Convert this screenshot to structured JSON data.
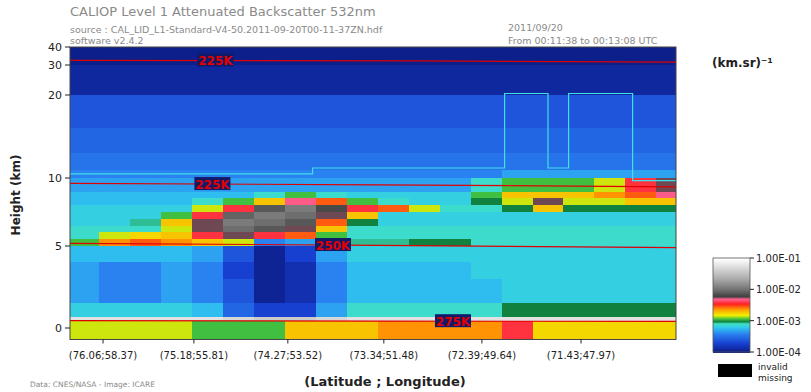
{
  "chart_data": {
    "type": "heatmap",
    "title": "CALIOP Level 1 Attenuated Backscatter 532nm",
    "subtitle": "source : CAL_LID_L1-Standard-V4-50.2011-09-20T00-11-37ZN.hdf",
    "annotations": [
      "software v2.4.2",
      "2011/09/20",
      "From 00:11:38 to 00:13:08 UTC",
      "Data: CNES/NASA - Image: ICARE"
    ],
    "x_label": "(Latitude ; Longitude)",
    "y_label": "Height (km)",
    "xlim": [
      76.38,
      70.51
    ],
    "xticks": [
      {
        "value": 76.06,
        "label": "(76.06;58.37)"
      },
      {
        "value": 75.18,
        "label": "(75.18;55.81)"
      },
      {
        "value": 74.27,
        "label": "(74.27;53.52)"
      },
      {
        "value": 73.34,
        "label": "(73.34;51.48)"
      },
      {
        "value": 72.39,
        "label": "(72.39;49.64)"
      },
      {
        "value": 71.43,
        "label": "(71.43;47.97)"
      }
    ],
    "ylim": [
      -0.7,
      40
    ],
    "yticks": [
      0,
      5,
      10,
      20,
      30,
      40
    ],
    "x_bins": [
      76.38,
      76.1,
      75.8,
      75.5,
      75.2,
      74.9,
      74.6,
      74.3,
      74.0,
      73.7,
      73.4,
      73.1,
      72.8,
      72.5,
      72.2,
      71.9,
      71.6,
      71.3,
      71.0,
      70.7,
      70.51
    ],
    "y_bins": [
      -0.7,
      0.4,
      0.7,
      1.5,
      3,
      4,
      5,
      5.5,
      6,
      6.5,
      7,
      7.5,
      8,
      8.5,
      9,
      10,
      11,
      13,
      16,
      20,
      30,
      40
    ],
    "values": [
      [
        0.0015,
        0.0015,
        0.0015,
        0.0015,
        0.0012,
        0.0012,
        0.0012,
        0.002,
        0.002,
        0.002,
        0.0025,
        0.0025,
        0.0025,
        0.0025,
        0.004,
        0.0018,
        0.0018,
        0.0018,
        0.0018,
        0.0018
      ],
      [
        0.06,
        0.06,
        0.06,
        0.06,
        0.06,
        0.05,
        0.04,
        0.04,
        0.05,
        0.06,
        0.06,
        0.06,
        0.06,
        0.06,
        0.06,
        0.06,
        0.06,
        0.06,
        0.06,
        0.06
      ],
      [
        0.0007,
        0.0007,
        0.0007,
        0.0007,
        0.0006,
        0.0003,
        0.0002,
        0.0002,
        0.0005,
        0.0008,
        0.0008,
        0.0008,
        0.0008,
        0.0008,
        0.001,
        0.001,
        0.001,
        0.001,
        0.001,
        0.001
      ],
      [
        0.0005,
        0.0004,
        0.0004,
        0.0005,
        0.0004,
        0.00025,
        0.00012,
        0.00015,
        0.0004,
        0.0006,
        0.0006,
        0.0006,
        0.0006,
        0.0006,
        0.0007,
        0.0007,
        0.0007,
        0.0007,
        0.0007,
        0.0007
      ],
      [
        0.0005,
        0.0004,
        0.0004,
        0.0005,
        0.0004,
        0.0002,
        0.00012,
        0.00015,
        0.0004,
        0.0006,
        0.0006,
        0.0006,
        0.0006,
        0.0007,
        0.0007,
        0.0007,
        0.0007,
        0.0007,
        0.0007,
        0.0007
      ],
      [
        0.0006,
        0.0006,
        0.0006,
        0.0006,
        0.0005,
        0.00025,
        0.00012,
        0.0002,
        0.0005,
        0.0007,
        0.0007,
        0.0007,
        0.0007,
        0.0007,
        0.0007,
        0.0007,
        0.0007,
        0.0007,
        0.0007,
        0.0007
      ],
      [
        0.0012,
        0.0025,
        0.003,
        0.0025,
        0.002,
        0.0015,
        0.0004,
        0.0005,
        0.0008,
        0.0009,
        0.0009,
        0.001,
        0.001,
        0.0008,
        0.0008,
        0.0008,
        0.0008,
        0.0008,
        0.0008,
        0.0008
      ],
      [
        0.0008,
        0.0015,
        0.0018,
        0.002,
        0.004,
        0.006,
        0.004,
        0.003,
        0.0012,
        0.0008,
        0.0008,
        0.0008,
        0.0008,
        0.0008,
        0.0008,
        0.0008,
        0.0008,
        0.0008,
        0.0008,
        0.0008
      ],
      [
        0.0008,
        0.0008,
        0.0008,
        0.0015,
        0.006,
        0.01,
        0.008,
        0.006,
        0.002,
        0.0008,
        0.0008,
        0.0008,
        0.0008,
        0.0008,
        0.0008,
        0.0008,
        0.0008,
        0.0008,
        0.0008,
        0.0008
      ],
      [
        0.0007,
        0.0007,
        0.0009,
        0.002,
        0.006,
        0.012,
        0.01,
        0.008,
        0.003,
        0.001,
        0.0007,
        0.0007,
        0.0007,
        0.0007,
        0.0007,
        0.0007,
        0.0007,
        0.0007,
        0.0007,
        0.0007
      ],
      [
        0.0007,
        0.0007,
        0.0007,
        0.0012,
        0.004,
        0.009,
        0.012,
        0.01,
        0.006,
        0.002,
        0.0007,
        0.0007,
        0.0007,
        0.0007,
        0.0007,
        0.0007,
        0.0007,
        0.0007,
        0.0007,
        0.0007
      ],
      [
        0.0007,
        0.0007,
        0.0007,
        0.0007,
        0.0015,
        0.004,
        0.008,
        0.012,
        0.007,
        0.004,
        0.003,
        0.0015,
        0.0008,
        0.0008,
        0.001,
        0.002,
        0.001,
        0.001,
        0.001,
        0.001
      ],
      [
        0.0006,
        0.0006,
        0.0006,
        0.0006,
        0.0008,
        0.0012,
        0.002,
        0.005,
        0.003,
        0.0012,
        0.0008,
        0.0007,
        0.0007,
        0.001,
        0.0015,
        0.006,
        0.0015,
        0.0015,
        0.002,
        0.002
      ],
      [
        0.0006,
        0.0006,
        0.0006,
        0.0006,
        0.0006,
        0.0006,
        0.0008,
        0.0012,
        0.0008,
        0.0007,
        0.0007,
        0.0007,
        0.0007,
        0.0012,
        0.002,
        0.002,
        0.002,
        0.0025,
        0.003,
        0.005
      ],
      [
        0.0005,
        0.0005,
        0.0005,
        0.0005,
        0.0005,
        0.0005,
        0.0005,
        0.0005,
        0.0005,
        0.0005,
        0.0005,
        0.0005,
        0.0005,
        0.0008,
        0.0012,
        0.0012,
        0.0012,
        0.0015,
        0.004,
        0.006
      ],
      [
        0.0004,
        0.0004,
        0.0004,
        0.0004,
        0.0004,
        0.0004,
        0.0004,
        0.0004,
        0.0004,
        0.0004,
        0.0004,
        0.0004,
        0.0004,
        0.0004,
        0.0005,
        0.0005,
        0.0005,
        0.0005,
        0.0005,
        0.0005
      ],
      [
        0.00035,
        0.00035,
        0.00035,
        0.00035,
        0.00035,
        0.00035,
        0.00035,
        0.00035,
        0.00035,
        0.00035,
        0.00035,
        0.00035,
        0.00035,
        0.00035,
        0.00035,
        0.00035,
        0.00035,
        0.00035,
        0.00035,
        0.00035
      ],
      [
        0.0003,
        0.0003,
        0.0003,
        0.0003,
        0.0003,
        0.0003,
        0.0003,
        0.0003,
        0.0003,
        0.0003,
        0.0003,
        0.0003,
        0.0003,
        0.0003,
        0.0003,
        0.0003,
        0.0003,
        0.0003,
        0.0003,
        0.0003
      ],
      [
        0.00025,
        0.00025,
        0.00025,
        0.00025,
        0.00025,
        0.00025,
        0.00025,
        0.00025,
        0.00025,
        0.00025,
        0.00025,
        0.00025,
        0.00025,
        0.00025,
        0.00025,
        0.00025,
        0.00025,
        0.00025,
        0.00025,
        0.00025
      ],
      [
        0.00013,
        0.00013,
        0.00013,
        0.00013,
        0.00013,
        0.00013,
        0.00013,
        0.00013,
        0.00013,
        0.00013,
        0.00013,
        0.00013,
        0.00013,
        0.00013,
        0.00013,
        0.00013,
        0.00013,
        0.00013,
        0.00013,
        0.00013
      ],
      [
        0.00011,
        0.00011,
        0.00011,
        0.00011,
        0.00011,
        0.00011,
        0.00011,
        0.00011,
        0.00011,
        0.00011,
        0.00011,
        0.00011,
        0.00011,
        0.00011,
        0.00011,
        0.00011,
        0.00011,
        0.00011,
        0.00011,
        0.00011
      ]
    ],
    "colorbar": {
      "label": "(km.sr)⁻¹",
      "lim": [
        0.0001,
        0.1
      ],
      "log": true,
      "ticks": [
        {
          "value": 0.1,
          "label": "1.00E-01"
        },
        {
          "value": 0.01,
          "label": "1.00E-02"
        },
        {
          "value": 0.001,
          "label": "1.00E-03"
        },
        {
          "value": 0.0001,
          "label": "1.00E-04"
        }
      ]
    },
    "missing_legend": {
      "labels": [
        "invalid",
        "missing"
      ],
      "color": "#000000"
    },
    "series": [
      {
        "name": "225K",
        "color": "#e00000",
        "x": [
          76.38,
          73.0,
          70.51
        ],
        "values": [
          32.6,
          32.3,
          31.6
        ]
      },
      {
        "name": "225K",
        "color": "#e00000",
        "x": [
          76.38,
          73.4,
          70.51
        ],
        "values": [
          9.6,
          9.5,
          9.35
        ]
      },
      {
        "name": "250K",
        "color": "#e00000",
        "x": [
          76.38,
          73.4,
          70.51
        ],
        "values": [
          5.2,
          5.05,
          4.9
        ]
      },
      {
        "name": "275K",
        "color": "#e00000",
        "x": [
          76.38,
          73.4,
          70.51
        ],
        "values": [
          0.45,
          0.42,
          0.4
        ]
      }
    ],
    "boundary": {
      "color": "#40e0e8",
      "x": [
        76.38,
        74.03,
        74.03,
        72.17,
        72.17,
        71.75,
        71.75,
        71.55,
        71.55,
        70.93,
        70.93,
        70.51
      ],
      "values": [
        10.5,
        10.5,
        11.2,
        11.2,
        20.5,
        20.5,
        11.2,
        11.2,
        20.5,
        20.5,
        9.8,
        9.8
      ]
    }
  }
}
